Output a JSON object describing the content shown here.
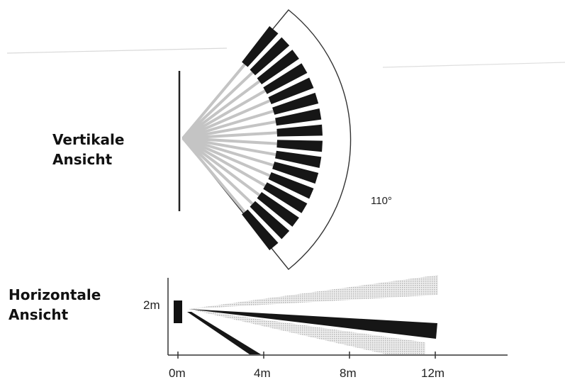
{
  "vertical_view": {
    "title_line1": "Vertikale",
    "title_line2": "Ansicht",
    "angle_label": "110°",
    "zone_count": 16
  },
  "horizontal_view": {
    "title_line1": "Horizontale",
    "title_line2": "Ansicht",
    "height_label": "2m",
    "axis_ticks": [
      "0m",
      "4m",
      "8m",
      "12m"
    ]
  },
  "colors": {
    "ink": "#111111",
    "beam_dark": "#161616",
    "beam_light": "#d8d8d8",
    "ray": "#c4c4c4"
  }
}
